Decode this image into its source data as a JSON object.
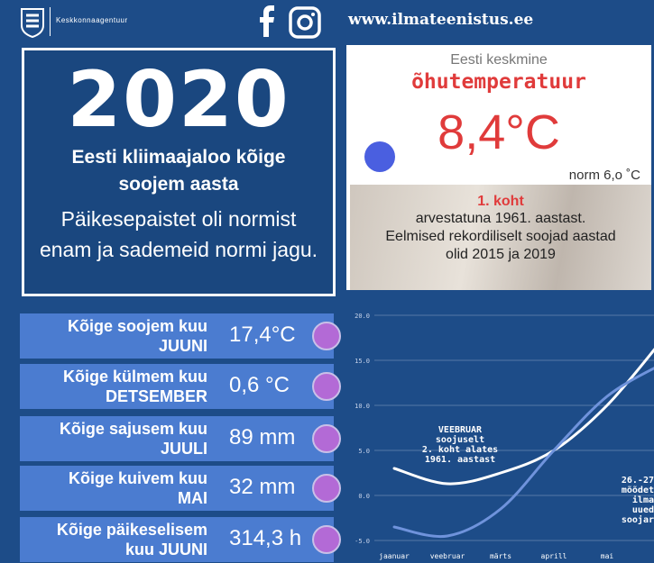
{
  "header": {
    "org": "Keskkonnaagentuur",
    "url": "www.ilmateenistus.ee"
  },
  "headline": {
    "year": "2020",
    "title": [
      "Eesti kliimaajaloo kõige",
      "soojem aasta"
    ],
    "text": [
      "Päikesepaistet oli normist",
      "enam ja sademeid normi jagu."
    ]
  },
  "temperature": {
    "label": "Eesti keskmine",
    "title": "õhutemperatuur",
    "value": "8,4°C",
    "norm": "norm 6,o ˚C",
    "rank": "1. koht",
    "text": [
      "arvestatuna 1961. aastast.",
      "Eelmised rekordiliselt soojad aastad",
      "olid 2015 ja 2019"
    ]
  },
  "records": [
    {
      "label": "Kõige soojem kuu",
      "month": "JUUNI",
      "value": "17,4°C"
    },
    {
      "label": "Kõige külmem kuu",
      "month": "DETSEMBER",
      "value": "0,6 °C"
    },
    {
      "label": "Kõige sajusem kuu",
      "month": "JUULI",
      "value": "89 mm"
    },
    {
      "label": "Kõige kuivem kuu",
      "month": "MAI",
      "value": "32 mm"
    },
    {
      "label": "Kõige päikeselisem",
      "month": "kuu JUUNI",
      "value": "314,3 h"
    }
  ],
  "chart_data": {
    "type": "line",
    "categories": [
      "jaanuar",
      "veebruar",
      "märts",
      "aprill",
      "mai",
      null
    ],
    "series": [
      {
        "color": "#ffffff",
        "values": [
          3.0,
          1.3,
          2.5,
          5.0,
          10.0,
          17.0
        ]
      },
      {
        "color": "#6f93dc",
        "values": [
          -3.5,
          -4.5,
          -1.5,
          5.0,
          11.0,
          14.5
        ]
      }
    ],
    "ylim": [
      -5,
      20
    ],
    "yticks": [
      {
        "value": -5,
        "label": "-5.0"
      },
      {
        "value": 0,
        "label": "0.0"
      },
      {
        "value": 5,
        "label": "5.0"
      },
      {
        "value": 10,
        "label": "10.0"
      },
      {
        "value": 15,
        "label": "15.0"
      },
      {
        "value": 20,
        "label": "20.0"
      }
    ],
    "grid": true,
    "annotations": [
      {
        "lines": [
          "VEEBRUAR",
          "soojuselt",
          "2. koht alates",
          "1961. aastast"
        ]
      },
      {
        "lines": [
          "26.-27",
          "mõõdet",
          "ilma",
          "uued",
          "soojar"
        ]
      }
    ]
  }
}
